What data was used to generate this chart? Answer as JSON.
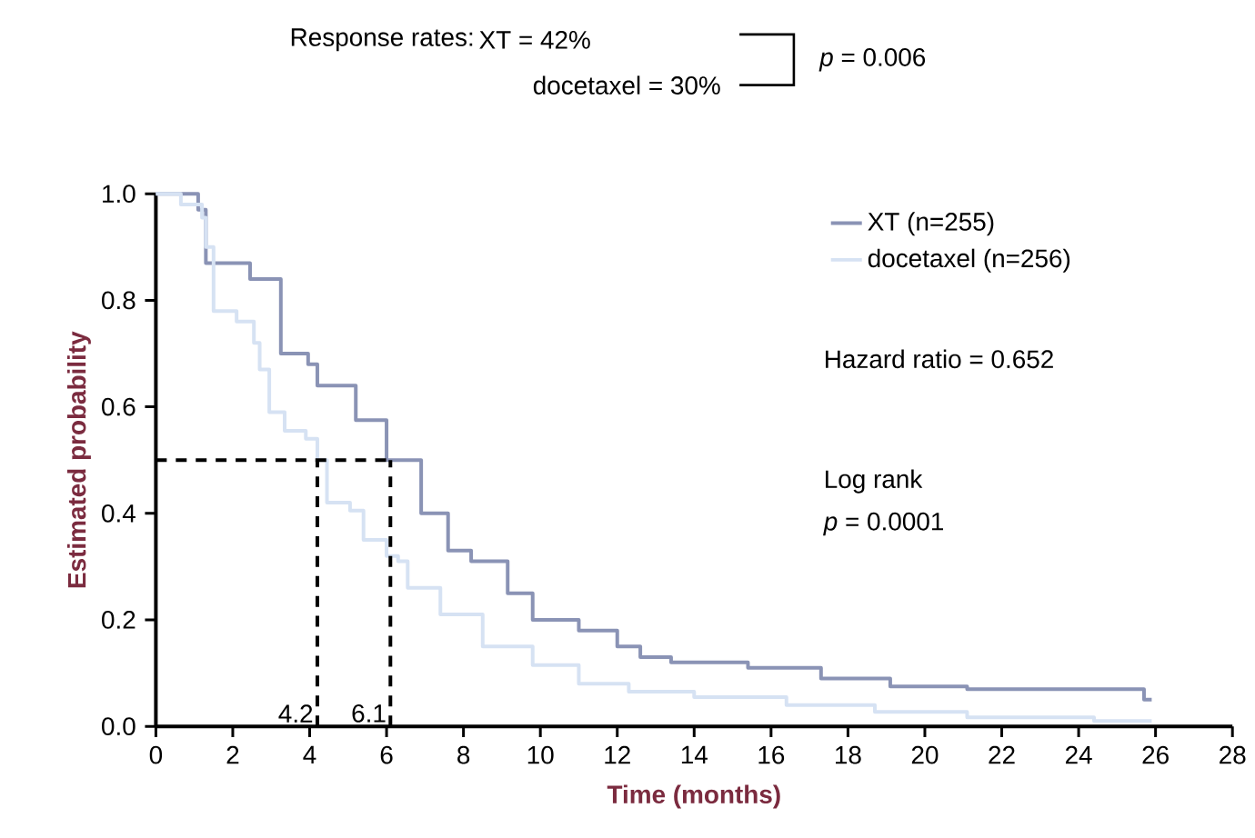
{
  "chart_data": {
    "type": "step",
    "xlabel": "Time (months)",
    "ylabel": "Estimated probability",
    "xlim": [
      0,
      28
    ],
    "ylim": [
      0,
      1.0
    ],
    "xticks": [
      0,
      2,
      4,
      6,
      8,
      10,
      12,
      14,
      16,
      18,
      20,
      22,
      24,
      26,
      28
    ],
    "yticks": [
      {
        "value": 0,
        "label": "0.0"
      },
      {
        "value": 0.2,
        "label": "0.2"
      },
      {
        "value": 0.4,
        "label": "0.4"
      },
      {
        "value": 0.6,
        "label": "0.6"
      },
      {
        "value": 0.8,
        "label": "0.8"
      },
      {
        "value": 1.0,
        "label": "1.0"
      }
    ],
    "series": [
      {
        "name": "XT (n=255)",
        "color": "#8a93b5",
        "x": [
          0,
          0.8,
          1.1,
          1.3,
          2.45,
          3.25,
          3.96,
          4.2,
          5.2,
          6.0,
          6.9,
          7.6,
          8.2,
          9.15,
          9.8,
          11.0,
          12.0,
          12.6,
          13.4,
          15.4,
          17.3,
          19.1,
          21.1,
          25.7,
          25.9
        ],
        "values": [
          1.0,
          1.0,
          0.97,
          0.87,
          0.84,
          0.7,
          0.68,
          0.64,
          0.575,
          0.5,
          0.4,
          0.33,
          0.31,
          0.25,
          0.2,
          0.18,
          0.15,
          0.13,
          0.12,
          0.11,
          0.09,
          0.075,
          0.07,
          0.05,
          0.05
        ]
      },
      {
        "name": "docetaxel (n=256)",
        "color": "#d6e2f3",
        "x": [
          0,
          0.65,
          1.2,
          1.3,
          1.5,
          2.1,
          2.55,
          2.7,
          2.95,
          3.35,
          3.9,
          4.2,
          4.45,
          5.05,
          5.4,
          6.0,
          6.3,
          6.55,
          7.4,
          8.5,
          9.8,
          11.0,
          12.3,
          14.0,
          16.4,
          18.7,
          21.1,
          24.4,
          25.9
        ],
        "values": [
          1.0,
          0.98,
          0.955,
          0.9,
          0.78,
          0.76,
          0.72,
          0.67,
          0.59,
          0.555,
          0.54,
          0.5,
          0.42,
          0.405,
          0.35,
          0.32,
          0.31,
          0.26,
          0.21,
          0.15,
          0.115,
          0.08,
          0.065,
          0.055,
          0.04,
          0.027,
          0.017,
          0.01,
          0.01
        ]
      }
    ],
    "ref_lines": [
      {
        "axis": "y",
        "value": 0.5,
        "color": "#000000",
        "line_style": "dashed"
      },
      {
        "axis": "x",
        "value": 4.2,
        "label": "4.2",
        "color": "#000000",
        "line_style": "dashed"
      },
      {
        "axis": "x",
        "value": 6.1,
        "label": "6.1",
        "color": "#000000",
        "line_style": "dashed"
      }
    ],
    "annotations": [
      "Response rates:",
      "XT = 42%",
      "docetaxel = 30%",
      "*p* = 0.006",
      "Hazard ratio = 0.652",
      "Log rank",
      "*p* = 0.0001"
    ],
    "legend": "top right",
    "grid": false,
    "marker": "none",
    "line_style": "solid"
  }
}
